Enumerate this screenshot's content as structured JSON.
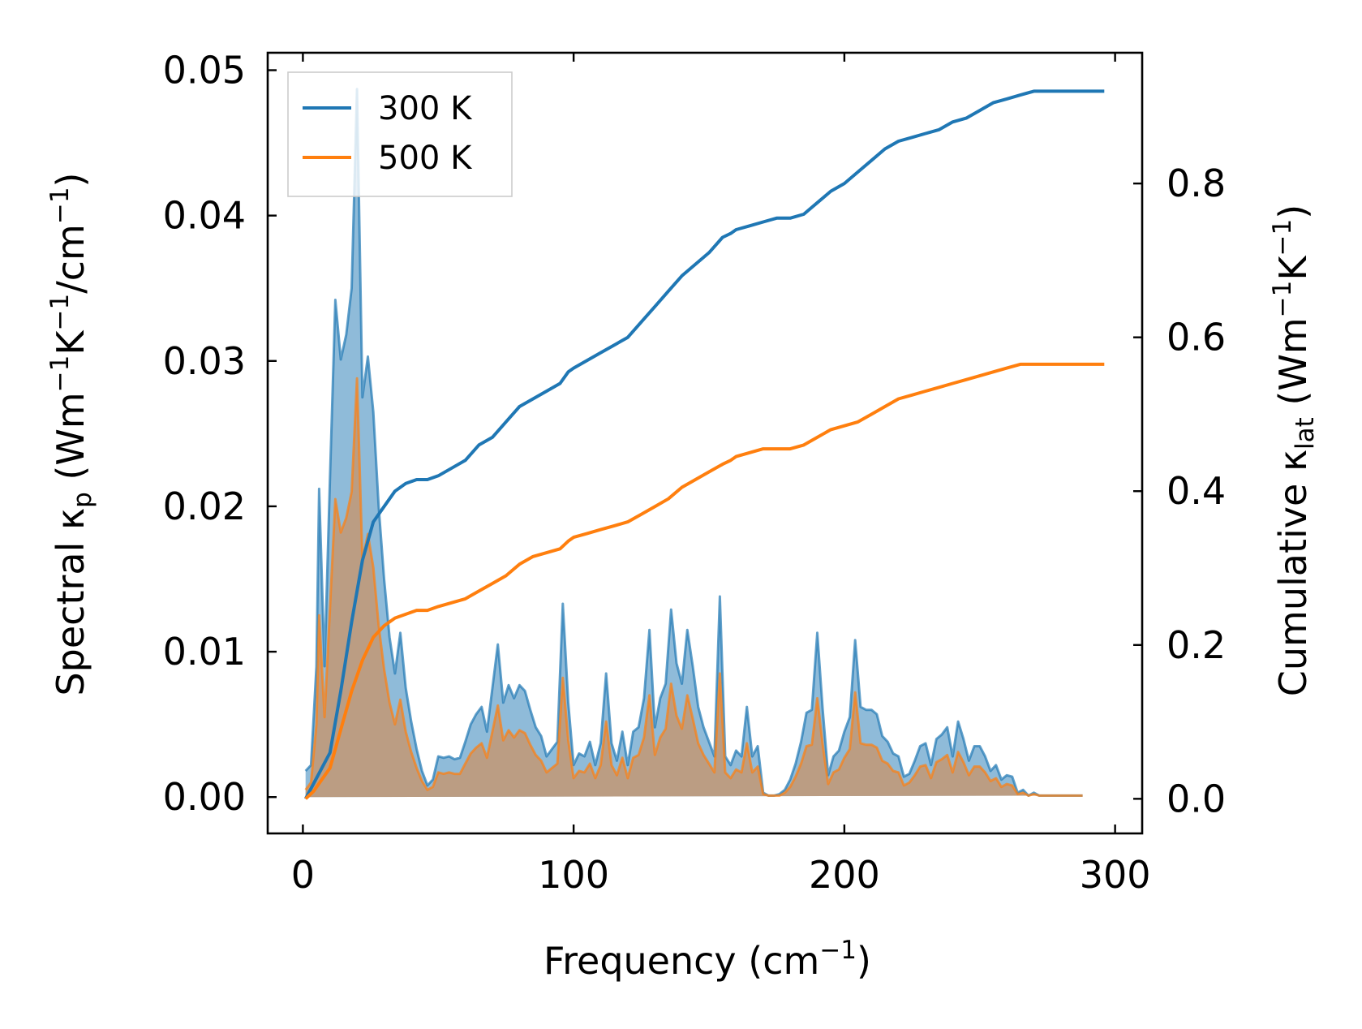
{
  "chart_data": {
    "type": "area",
    "xlabel": "Frequency (cm",
    "xlabel_sup": "−1",
    "xlabel_end": ")",
    "ylabel_left": {
      "p1": "Spectral κ",
      "sub": "p",
      "p2": " (Wm",
      "sup1": "−1",
      "p3": "K",
      "sup2": "−1",
      "p4": "/cm",
      "sup3": "−1",
      "p5": ")"
    },
    "ylabel_right": {
      "p1": "Cumulative κ",
      "sub": "lat",
      "p2": " (Wm",
      "sup1": "−1",
      "p3": "K",
      "sup2": "−1",
      "p4": ")"
    },
    "xlim": [
      -13,
      310
    ],
    "ylim_left": [
      -0.0025,
      0.0512
    ],
    "ylim_right": [
      -0.045,
      0.97
    ],
    "x_ticks": [
      0,
      100,
      200,
      300
    ],
    "x_tick_labels": [
      "0",
      "100",
      "200",
      "300"
    ],
    "y_left_ticks": [
      0,
      0.01,
      0.02,
      0.03,
      0.04,
      0.05
    ],
    "y_left_tick_labels": [
      "0.00",
      "0.01",
      "0.02",
      "0.03",
      "0.04",
      "0.05"
    ],
    "y_right_ticks": [
      0,
      0.2,
      0.4,
      0.6,
      0.8
    ],
    "y_right_tick_labels": [
      "0.0",
      "0.2",
      "0.4",
      "0.6",
      "0.8"
    ],
    "legend_position": "top-left",
    "spectral_x": [
      1,
      3,
      5,
      6,
      8,
      10,
      12,
      14,
      16,
      18,
      20,
      22,
      24,
      26,
      28,
      30,
      32,
      34,
      36,
      38,
      40,
      42,
      44,
      46,
      48,
      50,
      52,
      54,
      56,
      58,
      60,
      62,
      64,
      66,
      68,
      70,
      72,
      74,
      76,
      78,
      80,
      82,
      84,
      86,
      88,
      90,
      92,
      94,
      96,
      98,
      100,
      102,
      104,
      106,
      108,
      110,
      112,
      114,
      116,
      118,
      120,
      122,
      124,
      126,
      128,
      130,
      132,
      134,
      136,
      138,
      140,
      142,
      144,
      146,
      148,
      150,
      152,
      154,
      156,
      158,
      160,
      162,
      164,
      166,
      168,
      170,
      172,
      174,
      176,
      178,
      180,
      182,
      184,
      186,
      188,
      190,
      192,
      194,
      196,
      198,
      200,
      202,
      204,
      206,
      208,
      210,
      212,
      214,
      216,
      218,
      220,
      222,
      224,
      226,
      228,
      230,
      232,
      234,
      236,
      238,
      240,
      242,
      244,
      246,
      248,
      250,
      252,
      254,
      256,
      258,
      260,
      262,
      264,
      266,
      268,
      270,
      272,
      274,
      276,
      278,
      280,
      282,
      284,
      286,
      288,
      290,
      292,
      294,
      296
    ],
    "series": [
      {
        "name": "300 K",
        "color": "#1f77b4",
        "fill_color": "#1f77b4",
        "spectral": [
          0.0018,
          0.0022,
          0.009,
          0.0212,
          0.009,
          0.022,
          0.0342,
          0.0301,
          0.0318,
          0.035,
          0.0487,
          0.0275,
          0.0303,
          0.0265,
          0.02,
          0.015,
          0.011,
          0.0085,
          0.0113,
          0.0075,
          0.0052,
          0.0033,
          0.0018,
          0.0008,
          0.0012,
          0.0028,
          0.0027,
          0.0028,
          0.0026,
          0.0027,
          0.0038,
          0.005,
          0.0057,
          0.0062,
          0.0045,
          0.0075,
          0.0105,
          0.0065,
          0.0077,
          0.0068,
          0.0077,
          0.0073,
          0.006,
          0.0048,
          0.0042,
          0.0028,
          0.0033,
          0.0038,
          0.0133,
          0.0065,
          0.0022,
          0.003,
          0.0028,
          0.0038,
          0.0022,
          0.0037,
          0.0085,
          0.0037,
          0.0025,
          0.0045,
          0.0022,
          0.0045,
          0.0048,
          0.0068,
          0.0115,
          0.0048,
          0.0068,
          0.0078,
          0.0129,
          0.0092,
          0.0078,
          0.0115,
          0.009,
          0.0062,
          0.0048,
          0.0038,
          0.0028,
          0.0138,
          0.0028,
          0.0022,
          0.0032,
          0.0028,
          0.0062,
          0.0028,
          0.0035,
          0.0003,
          0.0001,
          0.0001,
          0.0002,
          0.0005,
          0.0012,
          0.0023,
          0.0038,
          0.0058,
          0.006,
          0.0113,
          0.006,
          0.0015,
          0.0028,
          0.0032,
          0.0045,
          0.0055,
          0.0108,
          0.0062,
          0.006,
          0.006,
          0.0057,
          0.0042,
          0.0038,
          0.003,
          0.0028,
          0.0014,
          0.0016,
          0.0025,
          0.0035,
          0.0037,
          0.0022,
          0.004,
          0.0043,
          0.0048,
          0.0028,
          0.0052,
          0.004,
          0.0025,
          0.0035,
          0.0035,
          0.0028,
          0.0018,
          0.0022,
          0.0012,
          0.0015,
          0.0014,
          0.0003,
          0.0005,
          0.0001,
          0.0003,
          0.0001,
          0.0001,
          0.0001,
          0.0001,
          0.0001,
          0.0001,
          0.0001,
          0.0001,
          0.0001
        ],
        "cumulative_x": [
          1,
          4,
          10,
          14,
          18,
          22,
          26,
          30,
          34,
          38,
          42,
          46,
          50,
          55,
          60,
          65,
          70,
          75,
          80,
          85,
          90,
          95,
          98,
          100,
          105,
          110,
          115,
          120,
          125,
          130,
          135,
          140,
          145,
          150,
          155,
          158,
          160,
          165,
          170,
          175,
          180,
          185,
          190,
          195,
          200,
          205,
          210,
          215,
          220,
          225,
          230,
          235,
          240,
          245,
          250,
          255,
          260,
          265,
          270,
          275,
          280,
          285,
          290,
          296
        ],
        "cumulative": [
          0,
          0.02,
          0.06,
          0.14,
          0.23,
          0.31,
          0.36,
          0.38,
          0.4,
          0.41,
          0.415,
          0.415,
          0.42,
          0.43,
          0.44,
          0.46,
          0.47,
          0.49,
          0.51,
          0.52,
          0.53,
          0.54,
          0.555,
          0.56,
          0.57,
          0.58,
          0.59,
          0.6,
          0.62,
          0.64,
          0.66,
          0.68,
          0.695,
          0.71,
          0.73,
          0.735,
          0.74,
          0.745,
          0.75,
          0.755,
          0.755,
          0.76,
          0.775,
          0.79,
          0.8,
          0.815,
          0.83,
          0.845,
          0.855,
          0.86,
          0.865,
          0.87,
          0.88,
          0.885,
          0.895,
          0.905,
          0.91,
          0.915,
          0.92,
          0.92,
          0.92,
          0.92,
          0.92,
          0.92
        ]
      },
      {
        "name": "500 K",
        "color": "#ff7f0e",
        "fill_color": "#c8956a",
        "spectral": [
          0.0005,
          0.001,
          0.005,
          0.0125,
          0.0055,
          0.013,
          0.0205,
          0.0182,
          0.0192,
          0.021,
          0.0288,
          0.0163,
          0.0181,
          0.0158,
          0.0118,
          0.0088,
          0.0065,
          0.005,
          0.0067,
          0.0045,
          0.0031,
          0.002,
          0.0011,
          0.0005,
          0.0007,
          0.0017,
          0.0016,
          0.0017,
          0.0016,
          0.0016,
          0.0023,
          0.003,
          0.0034,
          0.0037,
          0.0027,
          0.0045,
          0.0063,
          0.0039,
          0.0046,
          0.0041,
          0.0046,
          0.0044,
          0.0036,
          0.0029,
          0.0025,
          0.0017,
          0.002,
          0.0023,
          0.0082,
          0.0039,
          0.0013,
          0.0018,
          0.0017,
          0.0023,
          0.0013,
          0.0022,
          0.0052,
          0.0022,
          0.0015,
          0.0027,
          0.0013,
          0.0027,
          0.0029,
          0.0041,
          0.007,
          0.0029,
          0.0041,
          0.0047,
          0.0078,
          0.0056,
          0.0047,
          0.007,
          0.0054,
          0.0037,
          0.0029,
          0.0023,
          0.0017,
          0.0085,
          0.0017,
          0.0013,
          0.0019,
          0.0017,
          0.0037,
          0.0017,
          0.0021,
          0.0002,
          0.0001,
          0.0001,
          0.0001,
          0.0003,
          0.0007,
          0.0014,
          0.0023,
          0.0035,
          0.0036,
          0.0068,
          0.0036,
          0.0009,
          0.0017,
          0.0019,
          0.0027,
          0.0033,
          0.0072,
          0.0037,
          0.0036,
          0.0036,
          0.0034,
          0.0025,
          0.0023,
          0.0018,
          0.0017,
          0.0008,
          0.001,
          0.0015,
          0.0021,
          0.0022,
          0.0013,
          0.0024,
          0.0026,
          0.0029,
          0.0017,
          0.0031,
          0.0024,
          0.0015,
          0.0021,
          0.0021,
          0.0017,
          0.0011,
          0.0013,
          0.0007,
          0.0009,
          0.0008,
          0.0002,
          0.0003,
          0.0001,
          0.0002,
          0.0001,
          0.0001,
          0.0001,
          0.0001,
          0.0001,
          0.0001,
          0.0001,
          0.0001,
          0.0001
        ],
        "cumulative_x": [
          1,
          4,
          10,
          14,
          18,
          22,
          26,
          30,
          34,
          38,
          42,
          46,
          50,
          55,
          60,
          65,
          70,
          75,
          80,
          85,
          90,
          95,
          98,
          100,
          105,
          110,
          115,
          120,
          125,
          130,
          135,
          140,
          145,
          150,
          155,
          158,
          160,
          165,
          170,
          175,
          180,
          185,
          190,
          195,
          200,
          205,
          210,
          215,
          220,
          225,
          230,
          235,
          240,
          245,
          250,
          255,
          260,
          265,
          270,
          275,
          280,
          285,
          290,
          296
        ],
        "cumulative": [
          0,
          0.01,
          0.04,
          0.09,
          0.14,
          0.18,
          0.21,
          0.225,
          0.235,
          0.24,
          0.245,
          0.245,
          0.25,
          0.255,
          0.26,
          0.27,
          0.28,
          0.29,
          0.305,
          0.315,
          0.32,
          0.325,
          0.335,
          0.34,
          0.345,
          0.35,
          0.355,
          0.36,
          0.37,
          0.38,
          0.39,
          0.405,
          0.415,
          0.425,
          0.435,
          0.44,
          0.445,
          0.45,
          0.455,
          0.455,
          0.455,
          0.46,
          0.47,
          0.48,
          0.485,
          0.49,
          0.5,
          0.51,
          0.52,
          0.525,
          0.53,
          0.535,
          0.54,
          0.545,
          0.55,
          0.555,
          0.56,
          0.565,
          0.565,
          0.565,
          0.565,
          0.565,
          0.565,
          0.565
        ]
      }
    ]
  }
}
